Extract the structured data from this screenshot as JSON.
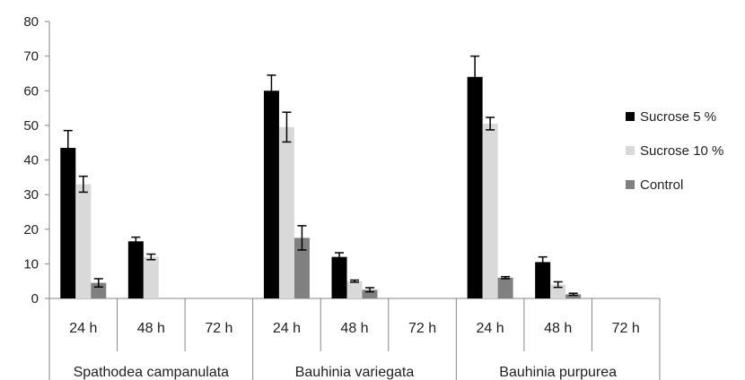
{
  "chart_data": {
    "type": "bar",
    "title": "",
    "xlabel": "",
    "ylabel": "",
    "ylim": [
      0,
      80
    ],
    "yticks": [
      0,
      10,
      20,
      30,
      40,
      50,
      60,
      70,
      80
    ],
    "categories": [
      "24 h",
      "48 h",
      "72 h",
      "24 h",
      "48 h",
      "72 h",
      "24 h",
      "48 h",
      "72 h"
    ],
    "groups": [
      "Spathodea campanulata",
      "Bauhinia variegata",
      "Bauhinia purpurea"
    ],
    "series": [
      {
        "name": "Sucrose 5 %",
        "color": "#000000",
        "values": [
          43.5,
          16.5,
          0,
          60,
          12,
          0,
          64,
          10.5,
          0
        ],
        "errors": [
          5,
          1.2,
          0,
          4.5,
          1.2,
          0,
          6,
          1.5,
          0
        ]
      },
      {
        "name": "Sucrose 10 %",
        "color": "#d9d9d9",
        "values": [
          33,
          12,
          0,
          49.5,
          5,
          0,
          50.5,
          4,
          0
        ],
        "errors": [
          2.3,
          0.8,
          0,
          4.3,
          0.3,
          0,
          1.8,
          0.8,
          0
        ]
      },
      {
        "name": "Control",
        "color": "#808080",
        "values": [
          4.5,
          0,
          0,
          17.5,
          2.5,
          0,
          6,
          1.2,
          0
        ],
        "errors": [
          1.2,
          0,
          0,
          3.5,
          0.6,
          0,
          0.3,
          0.3,
          0
        ]
      }
    ],
    "grid": false,
    "legend_position": "right"
  }
}
